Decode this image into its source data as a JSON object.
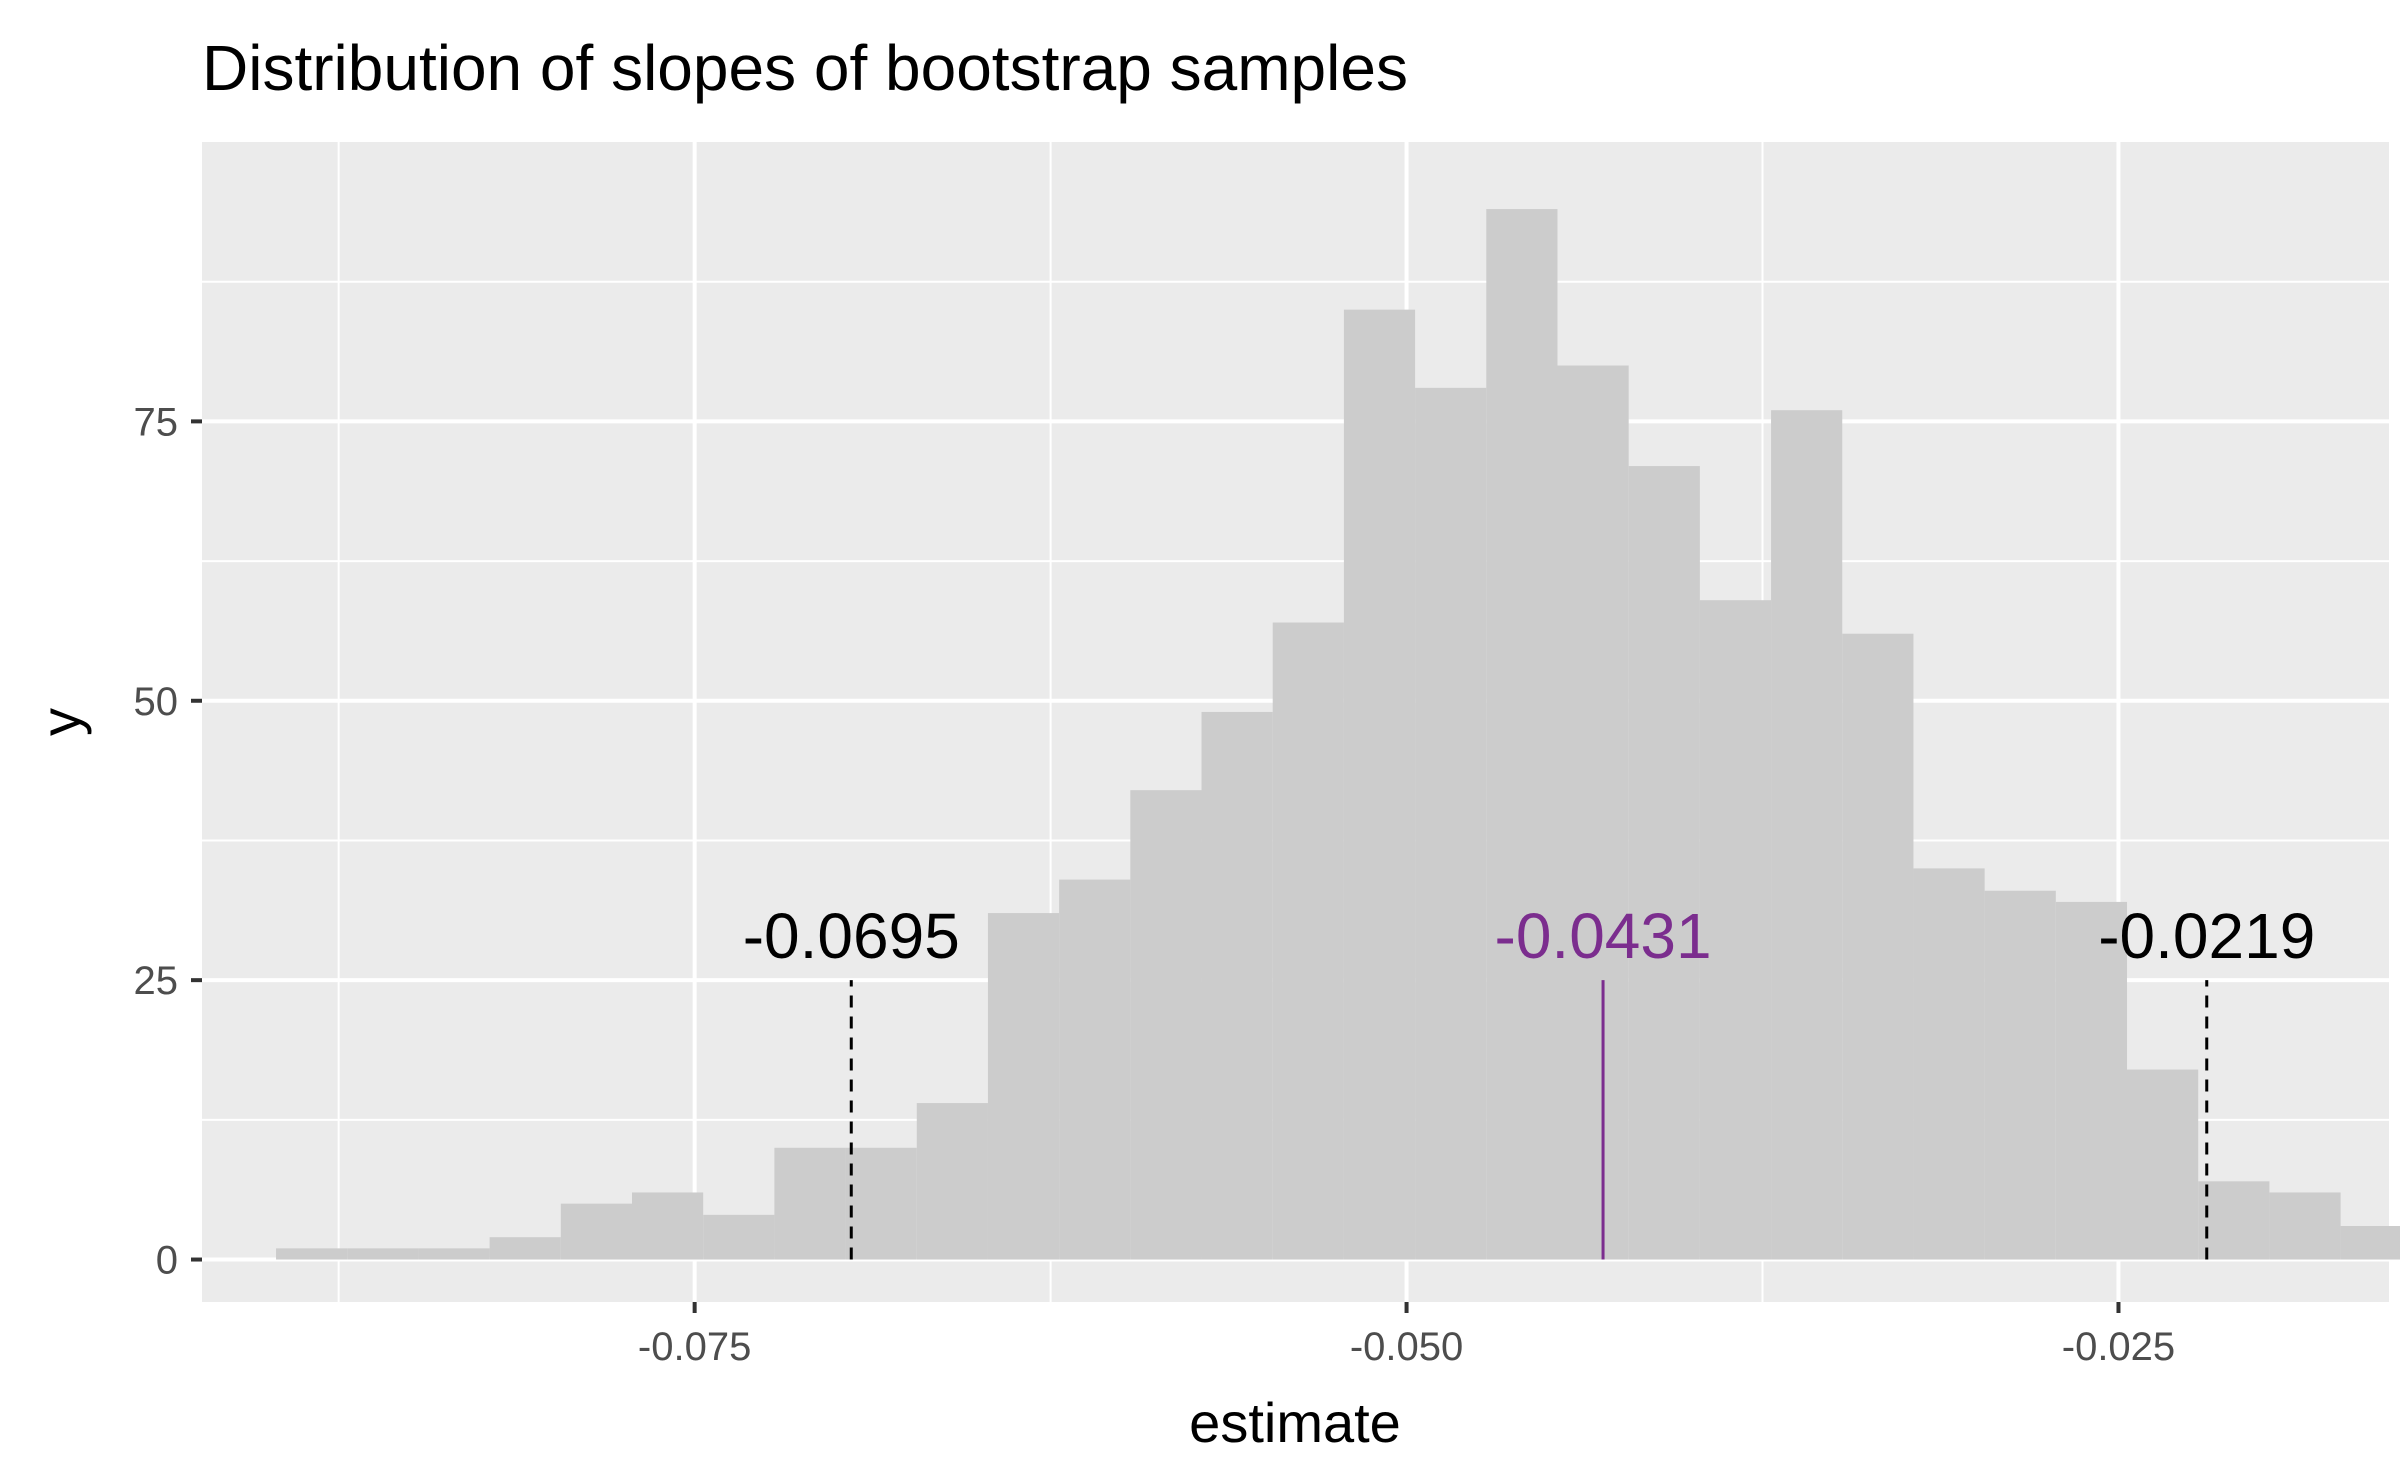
{
  "chart_data": {
    "type": "bar",
    "title": "Distribution of slopes of bootstrap samples",
    "xlabel": "estimate",
    "ylabel": "y",
    "xlim": [
      -0.0923,
      -0.0155
    ],
    "ylim": [
      -3.8,
      100
    ],
    "grid": true,
    "x_ticks": [
      {
        "value": -0.075,
        "label": "-0.075"
      },
      {
        "value": -0.05,
        "label": "-0.050"
      },
      {
        "value": -0.025,
        "label": "-0.025"
      }
    ],
    "y_ticks": [
      {
        "value": 0,
        "label": "0"
      },
      {
        "value": 25,
        "label": "25"
      },
      {
        "value": 50,
        "label": "50"
      },
      {
        "value": 75,
        "label": "75"
      }
    ],
    "bins": {
      "start": -0.0897,
      "width": 0.0025,
      "counts": [
        1,
        1,
        1,
        2,
        5,
        6,
        4,
        10,
        10,
        14,
        31,
        34,
        42,
        49,
        57,
        85,
        78,
        94,
        80,
        71,
        59,
        76,
        56,
        35,
        33,
        32,
        17,
        7,
        6,
        3,
        1
      ]
    },
    "bar_color": "#cccccc",
    "annotations": [
      {
        "x": -0.0695,
        "label": "-0.0695",
        "line": "dashed",
        "color": "#000000",
        "height": 25
      },
      {
        "x": -0.0431,
        "label": "-0.0431",
        "line": "solid",
        "color": "#7b2d8e",
        "height": 25
      },
      {
        "x": -0.0219,
        "label": "-0.0219",
        "line": "dashed",
        "color": "#000000",
        "height": 25
      }
    ]
  }
}
